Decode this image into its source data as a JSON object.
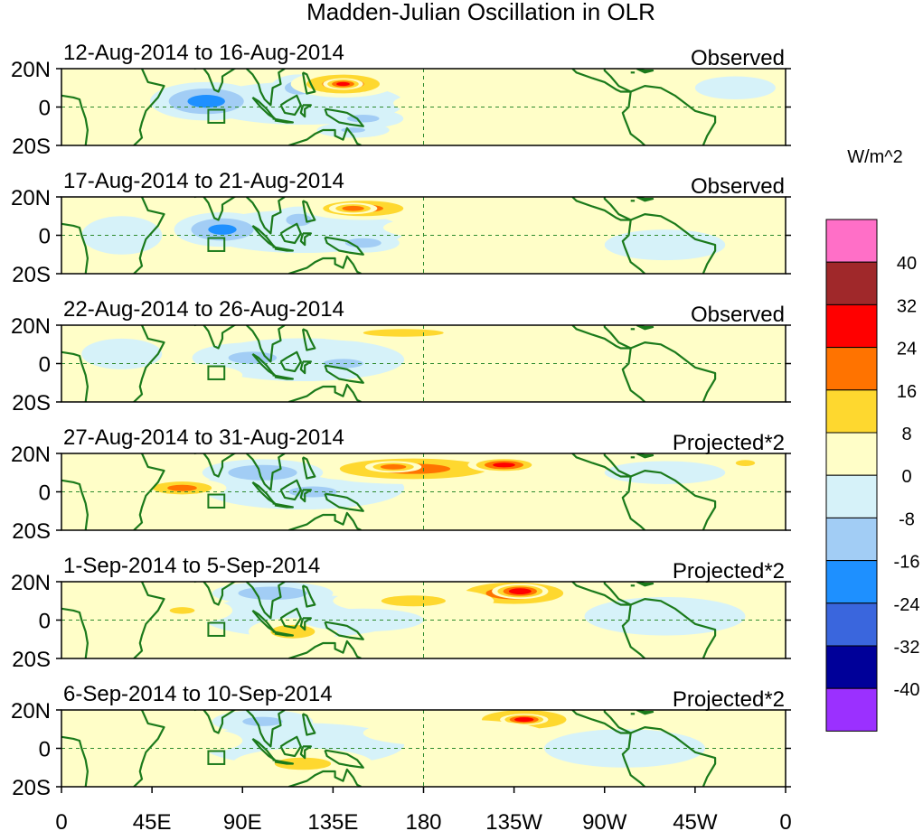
{
  "chart_data": {
    "type": "heatmap",
    "title": "Madden-Julian Oscillation in OLR",
    "variable": "OLR anomaly",
    "units": "W/m^2",
    "x_ticks": [
      "0",
      "45E",
      "90E",
      "135E",
      "180",
      "135W",
      "90W",
      "45W",
      "0"
    ],
    "x_range_deg": [
      0,
      360
    ],
    "y_ticks": [
      "20N",
      "0",
      "20S"
    ],
    "y_range_deg": [
      -20,
      20
    ],
    "colorbar": {
      "labels": [
        "40",
        "32",
        "24",
        "16",
        "8",
        "0",
        "-8",
        "-16",
        "-24",
        "-32",
        "-40"
      ],
      "levels": [
        -40,
        -32,
        -24,
        -16,
        -8,
        0,
        8,
        16,
        24,
        32,
        40
      ],
      "colors": [
        "#9b30ff",
        "#000099",
        "#3a66dd",
        "#1e90ff",
        "#a2cdf5",
        "#d6f2f9",
        "#fffec8",
        "#fed82f",
        "#ff7300",
        "#ff0000",
        "#a0282a",
        "#ff6fc7"
      ]
    },
    "panels": [
      {
        "period": "12-Aug-2014 to 16-Aug-2014",
        "status": "Observed",
        "blobs": [
          {
            "lon": 72,
            "lat": 3,
            "rlon": 28,
            "rlat": 10,
            "v": -18
          },
          {
            "lon": 118,
            "lat": 10,
            "rlon": 14,
            "rlat": 7,
            "v": -12
          },
          {
            "lon": 140,
            "lat": 12,
            "rlon": 26,
            "rlat": 7,
            "v": 20
          },
          {
            "lon": 140,
            "lat": 12,
            "rlon": 10,
            "rlat": 3,
            "v": 27
          },
          {
            "lon": 150,
            "lat": -6,
            "rlon": 20,
            "rlat": 5,
            "v": -10
          },
          {
            "lon": 145,
            "lat": -12,
            "rlon": 18,
            "rlat": 4,
            "v": -9
          },
          {
            "lon": 78,
            "lat": -14,
            "rlon": 30,
            "rlat": 5,
            "v": 5
          },
          {
            "lon": 215,
            "lat": 2,
            "rlon": 50,
            "rlat": 8,
            "v": 4
          },
          {
            "lon": 300,
            "lat": -3,
            "rlon": 40,
            "rlat": 8,
            "v": 5
          },
          {
            "lon": 335,
            "lat": 10,
            "rlon": 20,
            "rlat": 6,
            "v": -5
          }
        ]
      },
      {
        "period": "17-Aug-2014 to 21-Aug-2014",
        "status": "Observed",
        "blobs": [
          {
            "lon": 80,
            "lat": 3,
            "rlon": 24,
            "rlat": 9,
            "v": -17
          },
          {
            "lon": 118,
            "lat": 8,
            "rlon": 14,
            "rlat": 7,
            "v": -11
          },
          {
            "lon": 150,
            "lat": 14,
            "rlon": 30,
            "rlat": 6,
            "v": 18
          },
          {
            "lon": 145,
            "lat": 14,
            "rlon": 12,
            "rlat": 3,
            "v": 22
          },
          {
            "lon": 150,
            "lat": -4,
            "rlon": 18,
            "rlat": 5,
            "v": -12
          },
          {
            "lon": 240,
            "lat": 4,
            "rlon": 80,
            "rlat": 9,
            "v": 4
          },
          {
            "lon": 30,
            "lat": 0,
            "rlon": 20,
            "rlat": 10,
            "v": -5
          },
          {
            "lon": 300,
            "lat": -5,
            "rlon": 30,
            "rlat": 8,
            "v": -4
          }
        ]
      },
      {
        "period": "22-Aug-2014 to 26-Aug-2014",
        "status": "Observed",
        "blobs": [
          {
            "lon": 95,
            "lat": 3,
            "rlon": 30,
            "rlat": 8,
            "v": -10
          },
          {
            "lon": 140,
            "lat": 0,
            "rlon": 25,
            "rlat": 6,
            "v": -10
          },
          {
            "lon": 170,
            "lat": 16,
            "rlon": 50,
            "rlat": 5,
            "v": 10
          },
          {
            "lon": 60,
            "lat": -6,
            "rlon": 30,
            "rlat": 6,
            "v": 5
          },
          {
            "lon": 255,
            "lat": 8,
            "rlon": 55,
            "rlat": 8,
            "v": 5
          },
          {
            "lon": 30,
            "lat": 5,
            "rlon": 20,
            "rlat": 8,
            "v": -5
          }
        ]
      },
      {
        "period": "27-Aug-2014 to 31-Aug-2014",
        "status": "Projected*2",
        "blobs": [
          {
            "lon": 175,
            "lat": 12,
            "rlon": 55,
            "rlat": 8,
            "v": 18
          },
          {
            "lon": 220,
            "lat": 14,
            "rlon": 18,
            "rlat": 4,
            "v": 26
          },
          {
            "lon": 165,
            "lat": 13,
            "rlon": 14,
            "rlat": 3,
            "v": 22
          },
          {
            "lon": 60,
            "lat": 2,
            "rlon": 22,
            "rlat": 5,
            "v": 18
          },
          {
            "lon": 100,
            "lat": 10,
            "rlon": 30,
            "rlat": 7,
            "v": -14
          },
          {
            "lon": 125,
            "lat": 0,
            "rlon": 30,
            "rlat": 7,
            "v": -10
          },
          {
            "lon": 200,
            "lat": -10,
            "rlon": 30,
            "rlat": 5,
            "v": 6
          },
          {
            "lon": 300,
            "lat": 10,
            "rlon": 30,
            "rlat": 6,
            "v": -5
          },
          {
            "lon": 340,
            "lat": 15,
            "rlon": 12,
            "rlat": 4,
            "v": 10
          }
        ]
      },
      {
        "period": "1-Sep-2014 to 5-Sep-2014",
        "status": "Projected*2",
        "blobs": [
          {
            "lon": 225,
            "lat": 14,
            "rlon": 35,
            "rlat": 8,
            "v": 20
          },
          {
            "lon": 228,
            "lat": 15,
            "rlon": 14,
            "rlat": 4,
            "v": 30
          },
          {
            "lon": 175,
            "lat": 10,
            "rlon": 40,
            "rlat": 7,
            "v": 10
          },
          {
            "lon": 115,
            "lat": -6,
            "rlon": 22,
            "rlat": 7,
            "v": 12
          },
          {
            "lon": 60,
            "lat": 5,
            "rlon": 25,
            "rlat": 7,
            "v": 8
          },
          {
            "lon": 105,
            "lat": 14,
            "rlon": 30,
            "rlat": 6,
            "v": -14
          },
          {
            "lon": 150,
            "lat": 0,
            "rlon": 30,
            "rlat": 6,
            "v": -6
          },
          {
            "lon": 300,
            "lat": 2,
            "rlon": 40,
            "rlat": 10,
            "v": -5
          }
        ]
      },
      {
        "period": "6-Sep-2014 to 10-Sep-2014",
        "status": "Projected*2",
        "blobs": [
          {
            "lon": 230,
            "lat": 15,
            "rlon": 30,
            "rlat": 7,
            "v": 20
          },
          {
            "lon": 230,
            "lat": 15,
            "rlon": 12,
            "rlat": 3,
            "v": 30
          },
          {
            "lon": 120,
            "lat": -8,
            "rlon": 35,
            "rlat": 8,
            "v": 10
          },
          {
            "lon": 195,
            "lat": 8,
            "rlon": 45,
            "rlat": 7,
            "v": 5
          },
          {
            "lon": 60,
            "lat": 4,
            "rlon": 30,
            "rlat": 7,
            "v": 6
          },
          {
            "lon": 100,
            "lat": 14,
            "rlon": 25,
            "rlat": 6,
            "v": -10
          },
          {
            "lon": 280,
            "lat": 0,
            "rlon": 40,
            "rlat": 10,
            "v": -5
          }
        ]
      }
    ]
  }
}
